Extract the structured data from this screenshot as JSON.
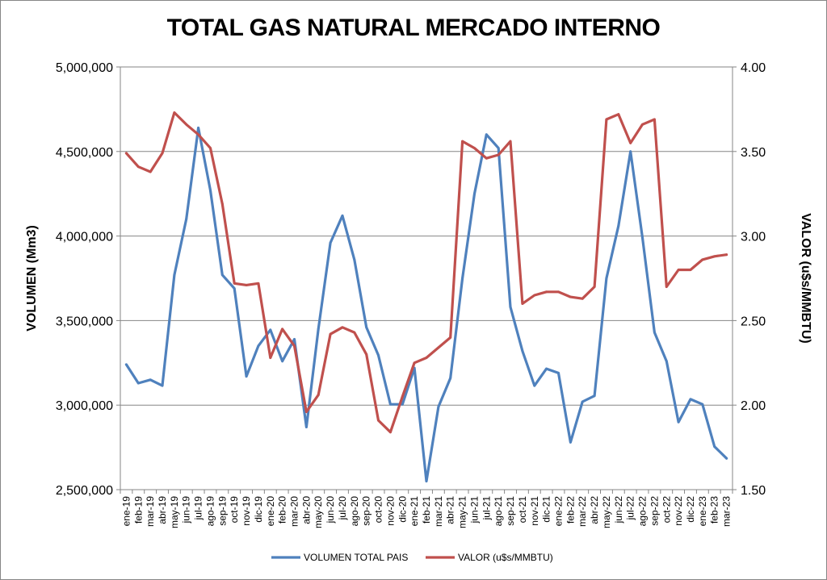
{
  "chart_data": {
    "type": "line",
    "title": "TOTAL GAS NATURAL MERCADO INTERNO",
    "ylabel": "VOLUMEN (Mm3)",
    "y2label": "VALOR (u$s/MMBTU)",
    "ylim": [
      2500000,
      5000000
    ],
    "y2lim": [
      1.5,
      4.0
    ],
    "yticks": [
      "2,500,000",
      "3,000,000",
      "3,500,000",
      "4,000,000",
      "4,500,000",
      "5,000,000"
    ],
    "y2ticks": [
      "1.50",
      "2.00",
      "2.50",
      "3.00",
      "3.50",
      "4.00"
    ],
    "grid": true,
    "legend_position": "bottom",
    "categories": [
      "ene-19",
      "feb-19",
      "mar-19",
      "abr-19",
      "may-19",
      "jun-19",
      "jul-19",
      "ago-19",
      "sep-19",
      "oct-19",
      "nov-19",
      "dic-19",
      "ene-20",
      "feb-20",
      "mar-20",
      "abr-20",
      "may-20",
      "jun-20",
      "jul-20",
      "ago-20",
      "sep-20",
      "oct-20",
      "nov-20",
      "dic-20",
      "ene-21",
      "feb-21",
      "mar-21",
      "abr-21",
      "may-21",
      "jun-21",
      "jul-21",
      "ago-21",
      "sep-21",
      "oct-21",
      "nov-21",
      "dic-21",
      "ene-22",
      "feb-22",
      "mar-22",
      "abr-22",
      "may-22",
      "jun-22",
      "jul-22",
      "ago-22",
      "sep-22",
      "oct-22",
      "nov-22",
      "dic-22",
      "ene-23",
      "feb-23",
      "mar-23"
    ],
    "series": [
      {
        "name": "VOLUMEN TOTAL PAIS",
        "axis": "left",
        "color": "#4F81BD",
        "values": [
          3240000,
          3130000,
          3150000,
          3115000,
          3770000,
          4100000,
          4640000,
          4270000,
          3770000,
          3690000,
          3170000,
          3350000,
          3445000,
          3260000,
          3390000,
          2870000,
          3450000,
          3960000,
          4120000,
          3860000,
          3460000,
          3295000,
          3005000,
          3005000,
          3220000,
          2550000,
          2990000,
          3160000,
          3750000,
          4250000,
          4600000,
          4520000,
          3580000,
          3320000,
          3115000,
          3215000,
          3190000,
          2780000,
          3020000,
          3055000,
          3750000,
          4060000,
          4500000,
          3990000,
          3430000,
          3260000,
          2900000,
          3035000,
          3005000,
          2755000,
          2685000
        ]
      },
      {
        "name": "VALOR (u$s/MMBTU)",
        "axis": "right",
        "color": "#C0504D",
        "values": [
          3.49,
          3.41,
          3.38,
          3.49,
          3.73,
          3.66,
          3.6,
          3.52,
          3.19,
          2.72,
          2.71,
          2.72,
          2.28,
          2.45,
          2.35,
          1.96,
          2.06,
          2.42,
          2.46,
          2.43,
          2.3,
          1.91,
          1.84,
          2.05,
          2.25,
          2.28,
          2.34,
          2.4,
          3.56,
          3.52,
          3.46,
          3.48,
          3.56,
          2.6,
          2.65,
          2.67,
          2.67,
          2.64,
          2.63,
          2.7,
          3.69,
          3.72,
          3.55,
          3.66,
          3.69,
          2.7,
          2.8,
          2.8,
          2.86,
          2.88,
          2.89
        ]
      }
    ]
  }
}
